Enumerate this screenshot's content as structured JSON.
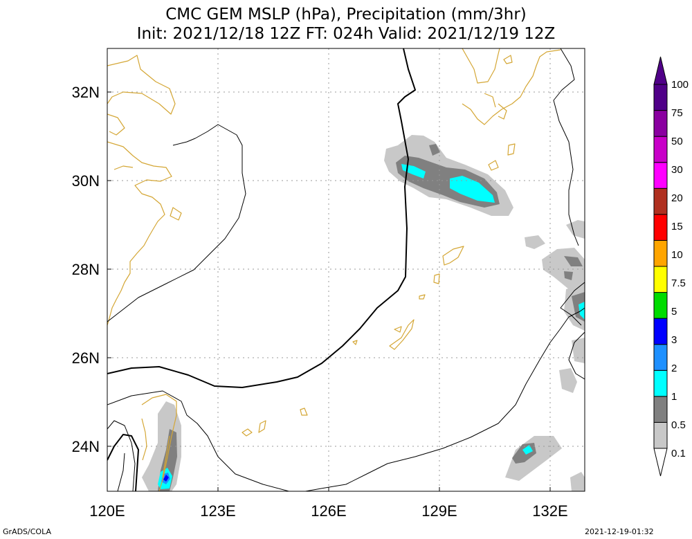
{
  "header": {
    "title_line1": "CMC GEM MSLP (hPa), Precipitation (mm/3hr)",
    "title_line2": "Init: 2021/12/18 12Z  FT: 024h  Valid: 2021/12/19 12Z"
  },
  "map": {
    "lon_ticks": [
      "120E",
      "123E",
      "126E",
      "129E",
      "132E"
    ],
    "lat_ticks": [
      "32N",
      "30N",
      "28N",
      "26N",
      "24N"
    ],
    "grid": true,
    "colors": {
      "coastline": "#d4a634",
      "isobar": "#000000",
      "grid": "#999999"
    }
  },
  "colorbar": {
    "labels": [
      "0.1",
      "0.5",
      "1",
      "2",
      "3",
      "5",
      "7.5",
      "10",
      "15",
      "20",
      "30",
      "50",
      "75",
      "100"
    ],
    "colors": [
      "#c8c8c8",
      "#808080",
      "#00ffff",
      "#1e90ff",
      "#0000ff",
      "#00dc00",
      "#ffff00",
      "#ffa500",
      "#ff0000",
      "#b03020",
      "#ff00ff",
      "#c800c8",
      "#8a00a0",
      "#500088"
    ]
  },
  "footer": {
    "left": "GrADS/COLA",
    "right": "2021-12-19-01:32"
  }
}
